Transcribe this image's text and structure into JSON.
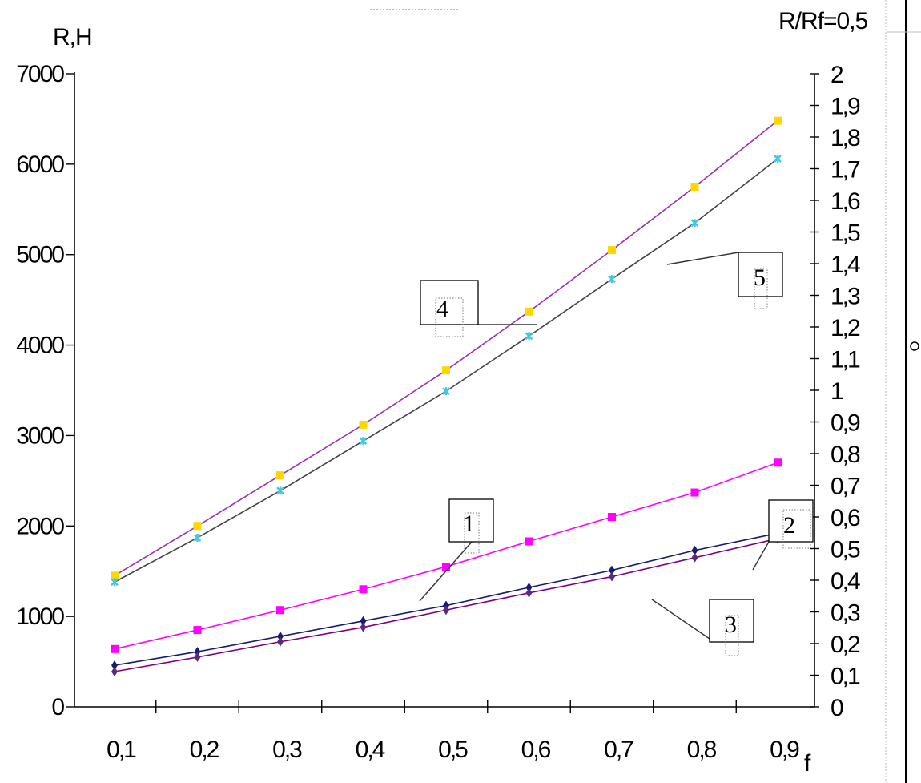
{
  "chart_data": {
    "type": "line",
    "title": "",
    "xlabel": "f",
    "ylabel_left": "R,H",
    "ylabel_right": "R/Rf=0,5",
    "x": [
      0.1,
      0.2,
      0.3,
      0.4,
      0.5,
      0.6,
      0.7,
      0.8,
      0.9
    ],
    "x_tick_labels": [
      "0,1",
      "0,2",
      "0,3",
      "0,4",
      "0,5",
      "0,6",
      "0,7",
      "0,8",
      "0,9"
    ],
    "ylim_left": [
      0,
      7000
    ],
    "y_left_ticks": [
      0,
      1000,
      2000,
      3000,
      4000,
      5000,
      6000,
      7000
    ],
    "y_left_tick_labels": [
      "0",
      "1000",
      "2000",
      "3000",
      "4000",
      "5000",
      "6000",
      "7000"
    ],
    "ylim_right": [
      0,
      2
    ],
    "y_right_tick_labels": [
      "0",
      "0,1",
      "0,2",
      "0,3",
      "0,4",
      "0,5",
      "0,6",
      "0,7",
      "0,8",
      "0,9",
      "1",
      "1,1",
      "1,2",
      "1,3",
      "1,4",
      "1,5",
      "1,6",
      "1,7",
      "1,8",
      "1,9",
      "2"
    ],
    "grid": false,
    "legend": "none",
    "series": [
      {
        "label": "4",
        "color": "#ffd700",
        "line_color": "#9b30b0",
        "marker": "square",
        "values": [
          1450,
          2000,
          2560,
          3120,
          3720,
          4370,
          5050,
          5750,
          6480
        ]
      },
      {
        "label": "5",
        "color": "#40c8e0",
        "line_color": "#444444",
        "marker": "asterisk",
        "values": [
          1380,
          1870,
          2390,
          2940,
          3490,
          4100,
          4730,
          5350,
          6060
        ]
      },
      {
        "label": "1",
        "color": "#ff00ff",
        "line_color": "#ff00ff",
        "marker": "square",
        "values": [
          640,
          850,
          1070,
          1300,
          1550,
          1830,
          2100,
          2370,
          2700
        ]
      },
      {
        "label": "2",
        "color": "#1a1a70",
        "line_color": "#1a1a70",
        "marker": "diamond",
        "values": [
          460,
          610,
          780,
          950,
          1120,
          1320,
          1510,
          1730,
          1920
        ]
      },
      {
        "label": "3",
        "color": "#5a2a80",
        "line_color": "#800080",
        "marker": "diamond",
        "values": [
          390,
          550,
          720,
          880,
          1070,
          1260,
          1440,
          1650,
          1860
        ]
      }
    ]
  }
}
